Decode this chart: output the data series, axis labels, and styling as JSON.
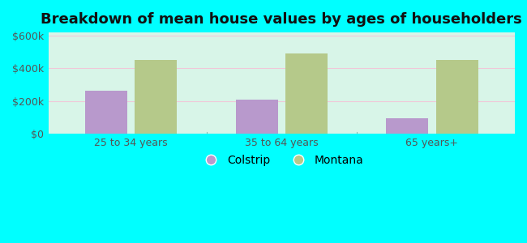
{
  "title": "Breakdown of mean house values by ages of householders",
  "categories": [
    "25 to 34 years",
    "35 to 64 years",
    "65 years+"
  ],
  "colstrip_values": [
    265000,
    210000,
    95000
  ],
  "montana_values": [
    450000,
    490000,
    450000
  ],
  "colstrip_color": "#b899cc",
  "montana_color": "#b5c98a",
  "background_color": "#00ffff",
  "plot_bg_top": "#d8f5e8",
  "plot_bg_bottom": "#e8fdf5",
  "ylim": [
    0,
    620000
  ],
  "yticks": [
    0,
    200000,
    400000,
    600000
  ],
  "ytick_labels": [
    "$0",
    "$200k",
    "$400k",
    "$600k"
  ],
  "legend_labels": [
    "Colstrip",
    "Montana"
  ],
  "bar_width": 0.28,
  "title_fontsize": 13,
  "axis_fontsize": 9,
  "legend_fontsize": 10,
  "tick_color": "#555555",
  "grid_color": "#d0f0e0"
}
